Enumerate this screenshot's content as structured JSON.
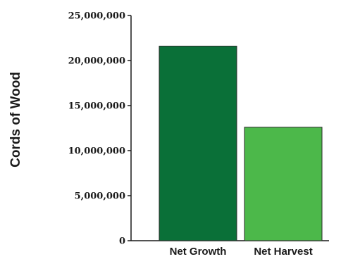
{
  "chart_data": {
    "type": "bar",
    "ylabel": "Cords of Wood",
    "categories": [
      "Net Growth",
      "Net Harvest"
    ],
    "values": [
      21600000,
      12600000
    ],
    "colors": [
      "#0a7038",
      "#4cb84a"
    ],
    "ylim": [
      0,
      25000000
    ],
    "yticks": [
      0,
      5000000,
      10000000,
      15000000,
      20000000,
      25000000
    ],
    "ytick_labels": [
      "0",
      "5,000,000",
      "10,000,000",
      "15,000,000",
      "20,000,000",
      "25,000,000"
    ],
    "grid": false,
    "legend": "none"
  }
}
